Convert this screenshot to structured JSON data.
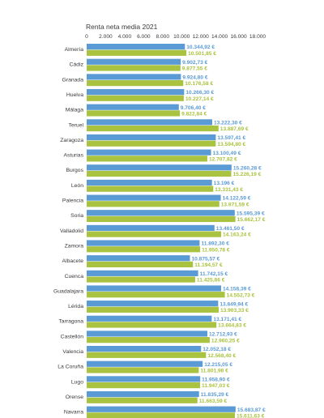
{
  "chart_data": {
    "type": "bar",
    "orientation": "horizontal",
    "title": "Renta neta media 2021",
    "xlim": [
      0,
      18000
    ],
    "xticks": [
      "0",
      "2.000",
      "4.000",
      "6.000",
      "8.000",
      "10.000",
      "12.000",
      "14.000",
      "16.000",
      "18.000"
    ],
    "xtick_values": [
      0,
      2000,
      4000,
      6000,
      8000,
      10000,
      12000,
      14000,
      16000,
      18000
    ],
    "legend": "none",
    "grid": false,
    "colors": {
      "series_a": "#5b9bd5",
      "series_b": "#a9c23f"
    },
    "categories": [
      "Almería",
      "Cádiz",
      "Granada",
      "Huelva",
      "Málaga",
      "Teruel",
      "Zaragoza",
      "Asturias",
      "Burgos",
      "León",
      "Palencia",
      "Soria",
      "Valladolid",
      "Zamora",
      "Albacete",
      "Cuenca",
      "Guadalajara",
      "Lérida",
      "Tarragona",
      "Castellón",
      "Valencia",
      "La Coruña",
      "Lugo",
      "Orense",
      "Navarra"
    ],
    "series": [
      {
        "values": [
          10344.92,
          9902.73,
          9924.8,
          10266.3,
          9706.4,
          13222.3,
          13597.41,
          13100.49,
          15260.28,
          13196,
          14122.59,
          15595.39,
          13461.5,
          11892.3,
          10875.57,
          11742.15,
          14158.39,
          13849.94,
          13171.41,
          12712.93,
          12052.18,
          12215.05,
          11958.9,
          11835.29,
          15683.87
        ],
        "labels": [
          "10.344,92 €",
          "9.902,73 €",
          "9.924,80 €",
          "10.266,30 €",
          "9.706,40 €",
          "13.222,30 €",
          "13.597,41 €",
          "13.100,49 €",
          "15.260,28 €",
          "13.196 €",
          "14.122,59 €",
          "15.595,39 €",
          "13.461,50 €",
          "11.892,30 €",
          "10.875,57 €",
          "11.742,15 €",
          "14.158,39 €",
          "13.849,94 €",
          "13.171,41 €",
          "12.712,93 €",
          "12.052,18 €",
          "12.215,05 €",
          "11.958,90 €",
          "11.835,29 €",
          "15.683,87 €"
        ]
      },
      {
        "values": [
          10501.85,
          9877.55,
          10176.58,
          10227.14,
          9822.84,
          13887.69,
          13594.8,
          12707.82,
          15226.19,
          13331.43,
          13971.59,
          15662.17,
          14163.24,
          11950.78,
          11194.57,
          11425.86,
          14552.73,
          13903.33,
          13664.83,
          12960.25,
          12568.4,
          11801.98,
          11947.03,
          11663.59,
          15611.63
        ],
        "labels": [
          "10.501,85 €",
          "9.877,55 €",
          "10.176,58 €",
          "10.227,14 €",
          "9.822,84 €",
          "13.887,69 €",
          "13.594,80 €",
          "12.707,82 €",
          "15.226,19 €",
          "13.331,43 €",
          "13.971,59 €",
          "15.662,17 €",
          "14.163,24 €",
          "11.950,78 €",
          "11.194,57 €",
          "11.425,86 €",
          "14.552,73 €",
          "13.903,33 €",
          "13.664,83 €",
          "12.960,25 €",
          "12.568,40 €",
          "11.801,98 €",
          "11.947,03 €",
          "11.663,59 €",
          "15.611,63 €"
        ]
      }
    ]
  }
}
